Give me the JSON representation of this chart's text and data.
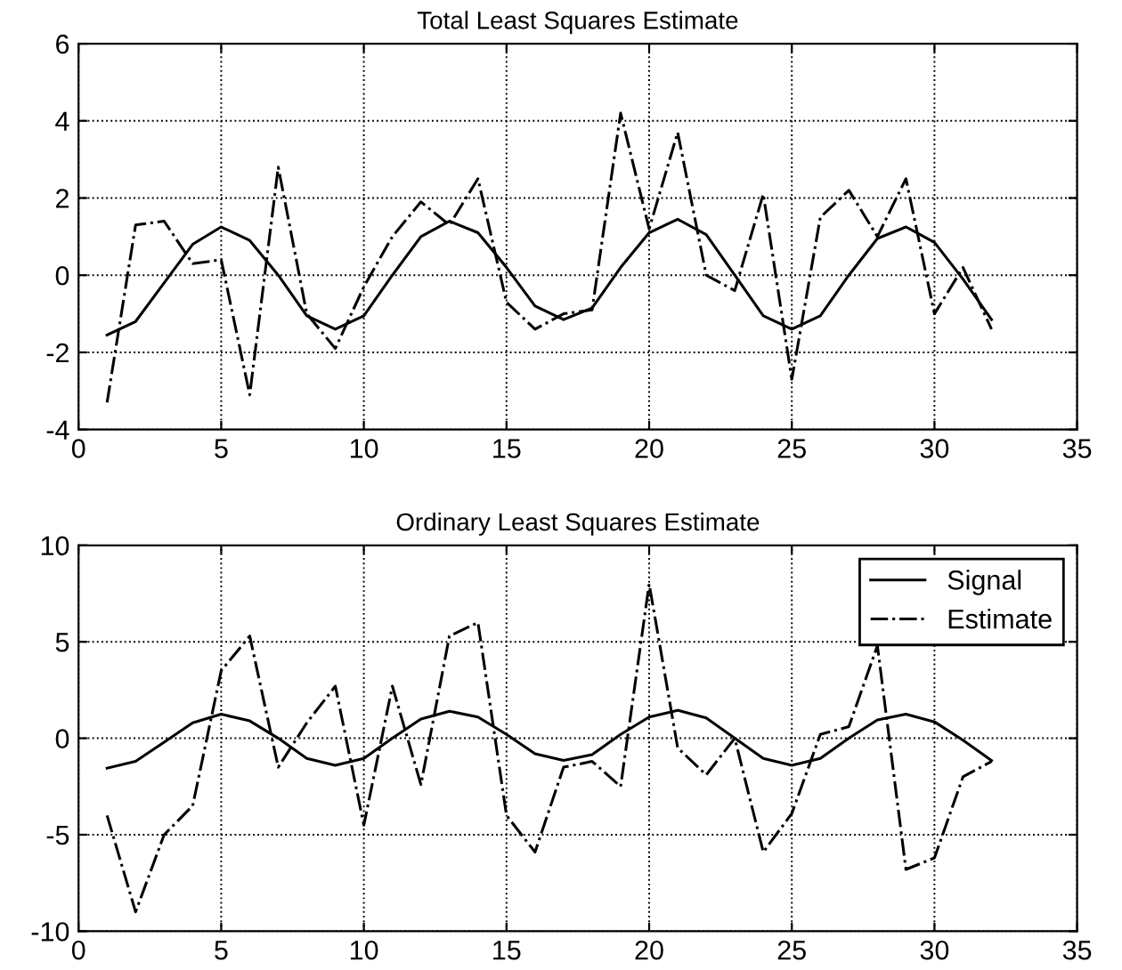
{
  "chart_data": [
    {
      "type": "line",
      "title": "Total Least Squares Estimate",
      "x": [
        1,
        2,
        3,
        4,
        5,
        6,
        7,
        8,
        9,
        10,
        11,
        12,
        13,
        14,
        15,
        16,
        17,
        18,
        19,
        20,
        21,
        22,
        23,
        24,
        25,
        26,
        27,
        28,
        29,
        30,
        31,
        32
      ],
      "series": [
        {
          "color": "#000000",
          "line_style": "solid",
          "values": [
            -1.55,
            -1.2,
            -0.2,
            0.8,
            1.25,
            0.9,
            0,
            -1.05,
            -1.4,
            -1.05,
            0,
            1.0,
            1.4,
            1.1,
            0.2,
            -0.8,
            -1.15,
            -0.85,
            0.2,
            1.1,
            1.45,
            1.05,
            0,
            -1.05,
            -1.4,
            -1.05,
            0,
            0.95,
            1.25,
            0.85,
            -0.1,
            -1.15
          ]
        },
        {
          "color": "#000000",
          "line_style": "dashdot",
          "values": [
            -3.3,
            1.3,
            1.4,
            0.3,
            0.4,
            -3.1,
            2.8,
            -1.0,
            -1.9,
            -0.3,
            1.0,
            1.9,
            1.3,
            2.5,
            -0.7,
            -1.4,
            -1.0,
            -0.9,
            4.2,
            1.2,
            3.7,
            0,
            -0.4,
            2.1,
            -2.7,
            1.5,
            2.2,
            1.0,
            2.5,
            -1.0,
            0.2,
            -1.4
          ]
        }
      ],
      "xlim": [
        0,
        35
      ],
      "xticks": [
        0,
        5,
        10,
        15,
        20,
        25,
        30,
        35
      ],
      "ylim": [
        -4,
        6
      ],
      "yticks": [
        -4,
        -2,
        0,
        2,
        4,
        6
      ],
      "grid": true,
      "marker": "none"
    },
    {
      "type": "line",
      "title": "Ordinary Least Squares Estimate",
      "x": [
        1,
        2,
        3,
        4,
        5,
        6,
        7,
        8,
        9,
        10,
        11,
        12,
        13,
        14,
        15,
        16,
        17,
        18,
        19,
        20,
        21,
        22,
        23,
        24,
        25,
        26,
        27,
        28,
        29,
        30,
        31,
        32
      ],
      "series": [
        {
          "name": "Signal",
          "color": "#000000",
          "line_style": "solid",
          "values": [
            -1.55,
            -1.2,
            -0.2,
            0.8,
            1.25,
            0.9,
            0,
            -1.05,
            -1.4,
            -1.05,
            0,
            1.0,
            1.4,
            1.1,
            0.2,
            -0.8,
            -1.15,
            -0.85,
            0.2,
            1.1,
            1.45,
            1.05,
            0,
            -1.05,
            -1.4,
            -1.05,
            0,
            0.95,
            1.25,
            0.85,
            -0.1,
            -1.15
          ]
        },
        {
          "name": "Estimate",
          "color": "#000000",
          "line_style": "dashdot",
          "values": [
            -4,
            -9,
            -5,
            -3.5,
            3.5,
            5.3,
            -1.5,
            0.8,
            2.7,
            -4.5,
            2.7,
            -2.4,
            5.3,
            6,
            -4,
            -5.9,
            -1.5,
            -1.2,
            -2.5,
            8,
            -0.5,
            -1.9,
            0,
            -5.9,
            -3.9,
            0.2,
            0.6,
            4.8,
            -6.8,
            -6.2,
            -2.0,
            -1.2
          ]
        }
      ],
      "xlim": [
        0,
        35
      ],
      "xticks": [
        0,
        5,
        10,
        15,
        20,
        25,
        30,
        35
      ],
      "ylim": [
        -10,
        10
      ],
      "yticks": [
        -10,
        -5,
        0,
        5,
        10
      ],
      "grid": true,
      "marker": "none",
      "legend": "upper right"
    }
  ]
}
